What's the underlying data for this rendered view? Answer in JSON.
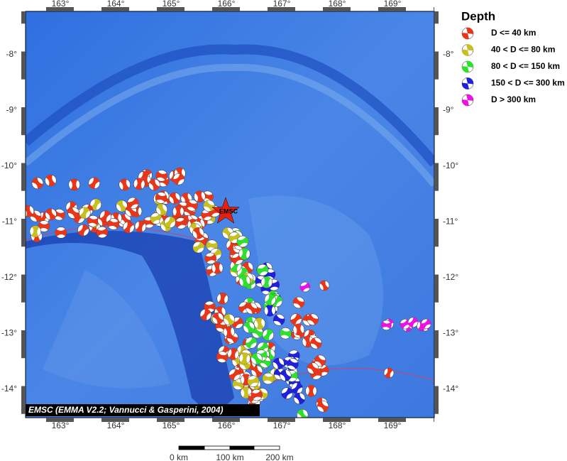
{
  "map": {
    "lon_labels": [
      "163°",
      "164°",
      "165°",
      "166°",
      "167°",
      "168°",
      "169°"
    ],
    "lat_labels": [
      "-8°",
      "-9°",
      "-10°",
      "-11°",
      "-12°",
      "-13°",
      "-14°"
    ],
    "marker_label": "EMSC",
    "credit": "EMSC (EMMA V2.2; Vannucci & Gasperini, 2004)",
    "scale_labels": [
      "0 km",
      "100 km",
      "200 km"
    ]
  },
  "legend": {
    "title": "Depth",
    "entries": [
      {
        "label": "D <= 40 km",
        "color": "#e8361a"
      },
      {
        "label": "40 < D <= 80 km",
        "color": "#c8c020"
      },
      {
        "label": "80 < D <= 150 km",
        "color": "#30e030"
      },
      {
        "label": "150 < D <= 300 km",
        "color": "#2020d8"
      },
      {
        "label": "D > 300 km",
        "color": "#f010e0"
      }
    ]
  }
}
